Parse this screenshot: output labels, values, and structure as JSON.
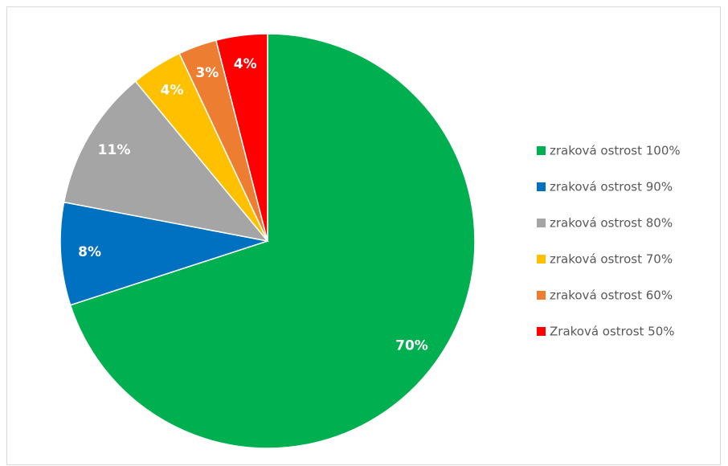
{
  "chart_data": {
    "type": "pie",
    "categories": [
      "zraková ostrost 100%",
      "zraková ostrost 90%",
      "zraková ostrost 80%",
      "zraková ostrost 70%",
      "zraková ostrost 60%",
      "Zraková ostrost 50%"
    ],
    "values": [
      70,
      8,
      11,
      4,
      3,
      4
    ],
    "value_labels": [
      "70%",
      "8%",
      "11%",
      "4%",
      "3%",
      "4%"
    ],
    "colors": [
      "#00b050",
      "#0070c0",
      "#a5a5a5",
      "#ffc000",
      "#ed7d31",
      "#ff0000"
    ],
    "legend": "right"
  }
}
